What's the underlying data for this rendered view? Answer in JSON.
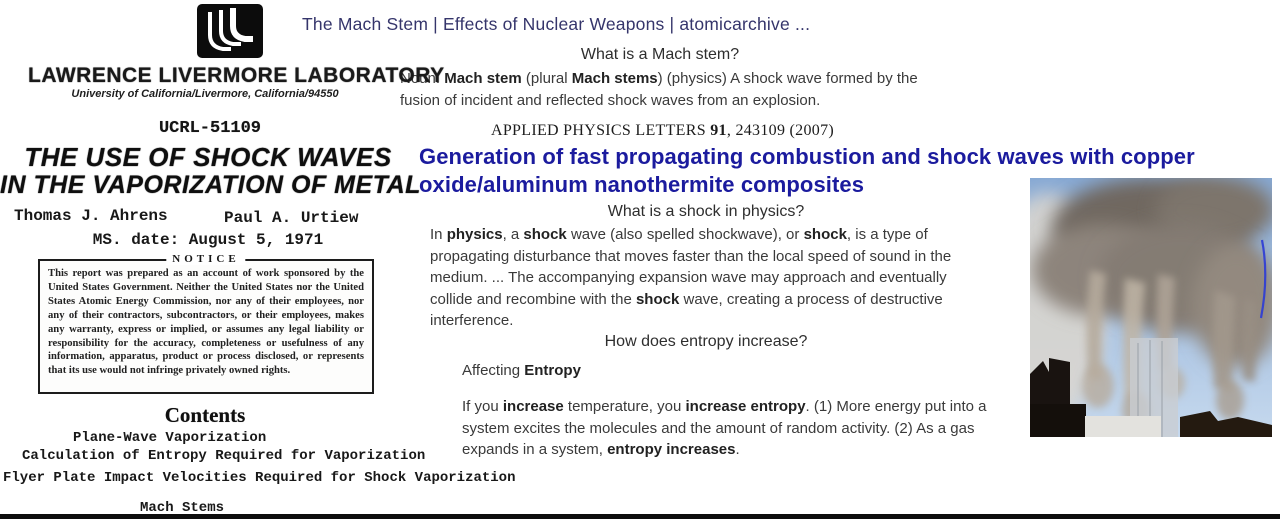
{
  "colors": {
    "result_title_navy": "#35356b",
    "paper_title_blue": "#1b1b9e",
    "body_text": "#3a3a3a",
    "scan_ink": "#151515",
    "photo_sky": "#8fb3dc",
    "photo_smoke": "#837a72"
  },
  "search": {
    "result_title": "The Mach Stem | Effects of Nuclear Weapons | atomicarchive ...",
    "question_mach_stem": "What is a Mach stem?",
    "mach_stem_definition": [
      {
        "text": "Noun. "
      },
      {
        "text": "Mach stem",
        "bold": true
      },
      {
        "text": " (plural "
      },
      {
        "text": "Mach stems",
        "bold": true
      },
      {
        "text": ") (physics) A shock wave formed by the fusion of incident and reflected shock waves from an explosion."
      }
    ],
    "question_shock": "What is a shock in physics?",
    "shock_answer": [
      {
        "text": "In "
      },
      {
        "text": "physics",
        "bold": true
      },
      {
        "text": ", a "
      },
      {
        "text": "shock",
        "bold": true
      },
      {
        "text": " wave (also spelled shockwave), or "
      },
      {
        "text": "shock",
        "bold": true
      },
      {
        "text": ", is a type of propagating disturbance that moves faster than the local speed of sound in the medium. ... The accompanying expansion wave may approach and eventually collide and recombine with the "
      },
      {
        "text": "shock",
        "bold": true
      },
      {
        "text": " wave, creating a process of destructive interference."
      }
    ],
    "question_entropy": "How does entropy increase?",
    "entropy_heading": [
      {
        "text": "Affecting "
      },
      {
        "text": "Entropy",
        "bold": true
      }
    ],
    "entropy_answer": [
      {
        "text": "If you "
      },
      {
        "text": "increase",
        "bold": true
      },
      {
        "text": " temperature, you "
      },
      {
        "text": "increase entropy",
        "bold": true
      },
      {
        "text": ". (1) More energy put into a system excites the molecules and the amount of random activity. (2) As a gas expands in a system, "
      },
      {
        "text": "entropy increases",
        "bold": true
      },
      {
        "text": "."
      }
    ]
  },
  "apl": {
    "journal_line": [
      {
        "text": "APPLIED PHYSICS LETTERS "
      },
      {
        "text": "91",
        "bold": true
      },
      {
        "text": ", 243109 (2007)"
      }
    ],
    "paper_title": "Generation of fast propagating combustion and shock waves with copper oxide/aluminum nanothermite composites"
  },
  "document": {
    "org_name": "LAWRENCE LIVERMORE LABORATORY",
    "org_subtitle": "University of California/Livermore, California/94550",
    "report_number": "UCRL-51109",
    "title_line1": "THE USE OF SHOCK WAVES",
    "title_line2": "IN THE VAPORIZATION OF METAL",
    "author1": "Thomas J. Ahrens",
    "author2": "Paul A. Urtiew",
    "ms_date": "MS. date: August 5, 1971",
    "notice_label": "NOTICE",
    "notice_text": "This report was prepared as an account of work sponsored by the United States Government. Neither the United States nor the United States Atomic Energy Commission, nor any of their employees, nor any of their contractors, subcontractors, or their employees, makes any warranty, express or implied, or assumes any legal liability or responsibility for the accuracy, completeness or usefulness of any information, apparatus, product or process disclosed, or represents that its use would not infringe privately owned rights.",
    "contents_heading": "Contents",
    "contents_items": [
      "Plane-Wave Vaporization",
      "Calculation of Entropy Required for Vaporization",
      "Flyer Plate Impact Velocities Required for Shock Vaporization",
      "Mach Stems"
    ]
  }
}
